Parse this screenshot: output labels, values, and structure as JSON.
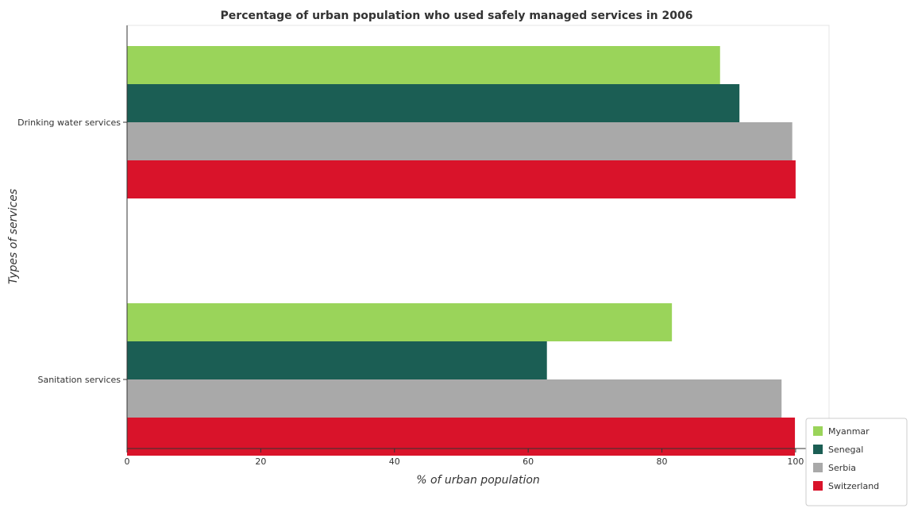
{
  "chart_data": {
    "type": "bar",
    "orientation": "horizontal",
    "title": "Percentage of urban population who used safely managed services in 2006",
    "xlabel": "% of urban population",
    "ylabel": "Types of services",
    "categories": [
      "Sanitation services",
      "Drinking water services"
    ],
    "xlim": [
      0,
      105
    ],
    "xticks": [
      0,
      20,
      40,
      60,
      80,
      100
    ],
    "legend_position": "bottom-right",
    "grid": false,
    "series": [
      {
        "name": "Myanmar",
        "color": "#9ad45a",
        "values": [
          81.5,
          88.7
        ]
      },
      {
        "name": "Senegal",
        "color": "#1b5e54",
        "values": [
          62.8,
          91.6
        ]
      },
      {
        "name": "Serbia",
        "color": "#a9a9a9",
        "values": [
          97.9,
          99.5
        ]
      },
      {
        "name": "Switzerland",
        "color": "#d9132a",
        "values": [
          99.9,
          100
        ]
      }
    ]
  }
}
